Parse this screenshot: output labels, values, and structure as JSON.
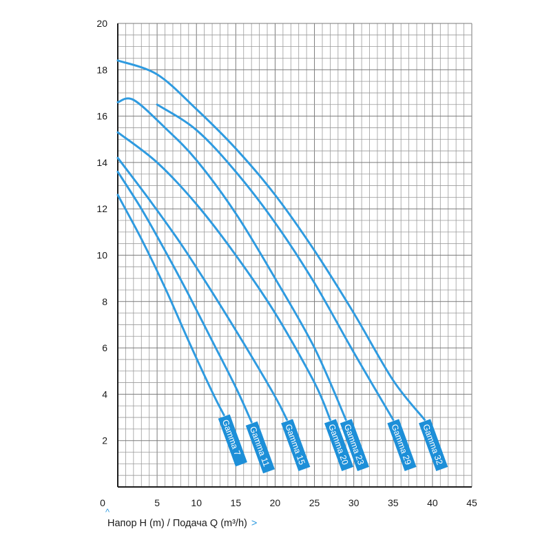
{
  "chart_data": {
    "type": "line",
    "xlabel": "Напор H (m) / Подача Q (m³/h)",
    "xlim": [
      0,
      45
    ],
    "ylim": [
      0,
      20
    ],
    "x_ticks": [
      "5",
      "10",
      "15",
      "20",
      "25",
      "30",
      "35",
      "40",
      "45"
    ],
    "y_ticks": [
      "2",
      "4",
      "6",
      "8",
      "10",
      "12",
      "14",
      "16",
      "18",
      "20"
    ],
    "origin_label": "0",
    "grid": true,
    "series": [
      {
        "name": "Gamma 7",
        "x": [
          0,
          3,
          6,
          9,
          12,
          13.5
        ],
        "y": [
          12.6,
          10.7,
          8.6,
          6.3,
          4.1,
          3.1
        ]
      },
      {
        "name": "Gamma 11",
        "x": [
          0,
          3,
          6,
          9,
          12,
          15,
          17
        ],
        "y": [
          13.6,
          12.0,
          10.2,
          8.3,
          6.3,
          4.3,
          2.8
        ]
      },
      {
        "name": "Gamma 15",
        "x": [
          0,
          4,
          8,
          12,
          16,
          20,
          21.5
        ],
        "y": [
          14.2,
          12.4,
          10.5,
          8.4,
          6.2,
          3.9,
          2.9
        ]
      },
      {
        "name": "Gamma 20",
        "x": [
          0,
          5,
          10,
          15,
          20,
          25,
          27
        ],
        "y": [
          15.3,
          14.0,
          12.2,
          10.0,
          7.5,
          4.5,
          2.9
        ]
      },
      {
        "name": "Gamma 23",
        "x": [
          0,
          2,
          6,
          10,
          15,
          20,
          25,
          29
        ],
        "y": [
          16.6,
          16.7,
          15.5,
          14.1,
          11.8,
          9.0,
          6.0,
          2.9
        ]
      },
      {
        "name": "Gamma 29",
        "x": [
          5,
          10,
          15,
          20,
          25,
          30,
          35
        ],
        "y": [
          16.5,
          15.4,
          13.6,
          11.4,
          8.8,
          5.8,
          2.9
        ]
      },
      {
        "name": "Gamma 32",
        "x": [
          0,
          5,
          10,
          15,
          20,
          25,
          30,
          35,
          39
        ],
        "y": [
          18.4,
          17.8,
          16.3,
          14.6,
          12.6,
          10.2,
          7.5,
          4.6,
          2.9
        ]
      }
    ],
    "line_color": "#2f9be0",
    "label_bg": "#1d8fd8"
  }
}
